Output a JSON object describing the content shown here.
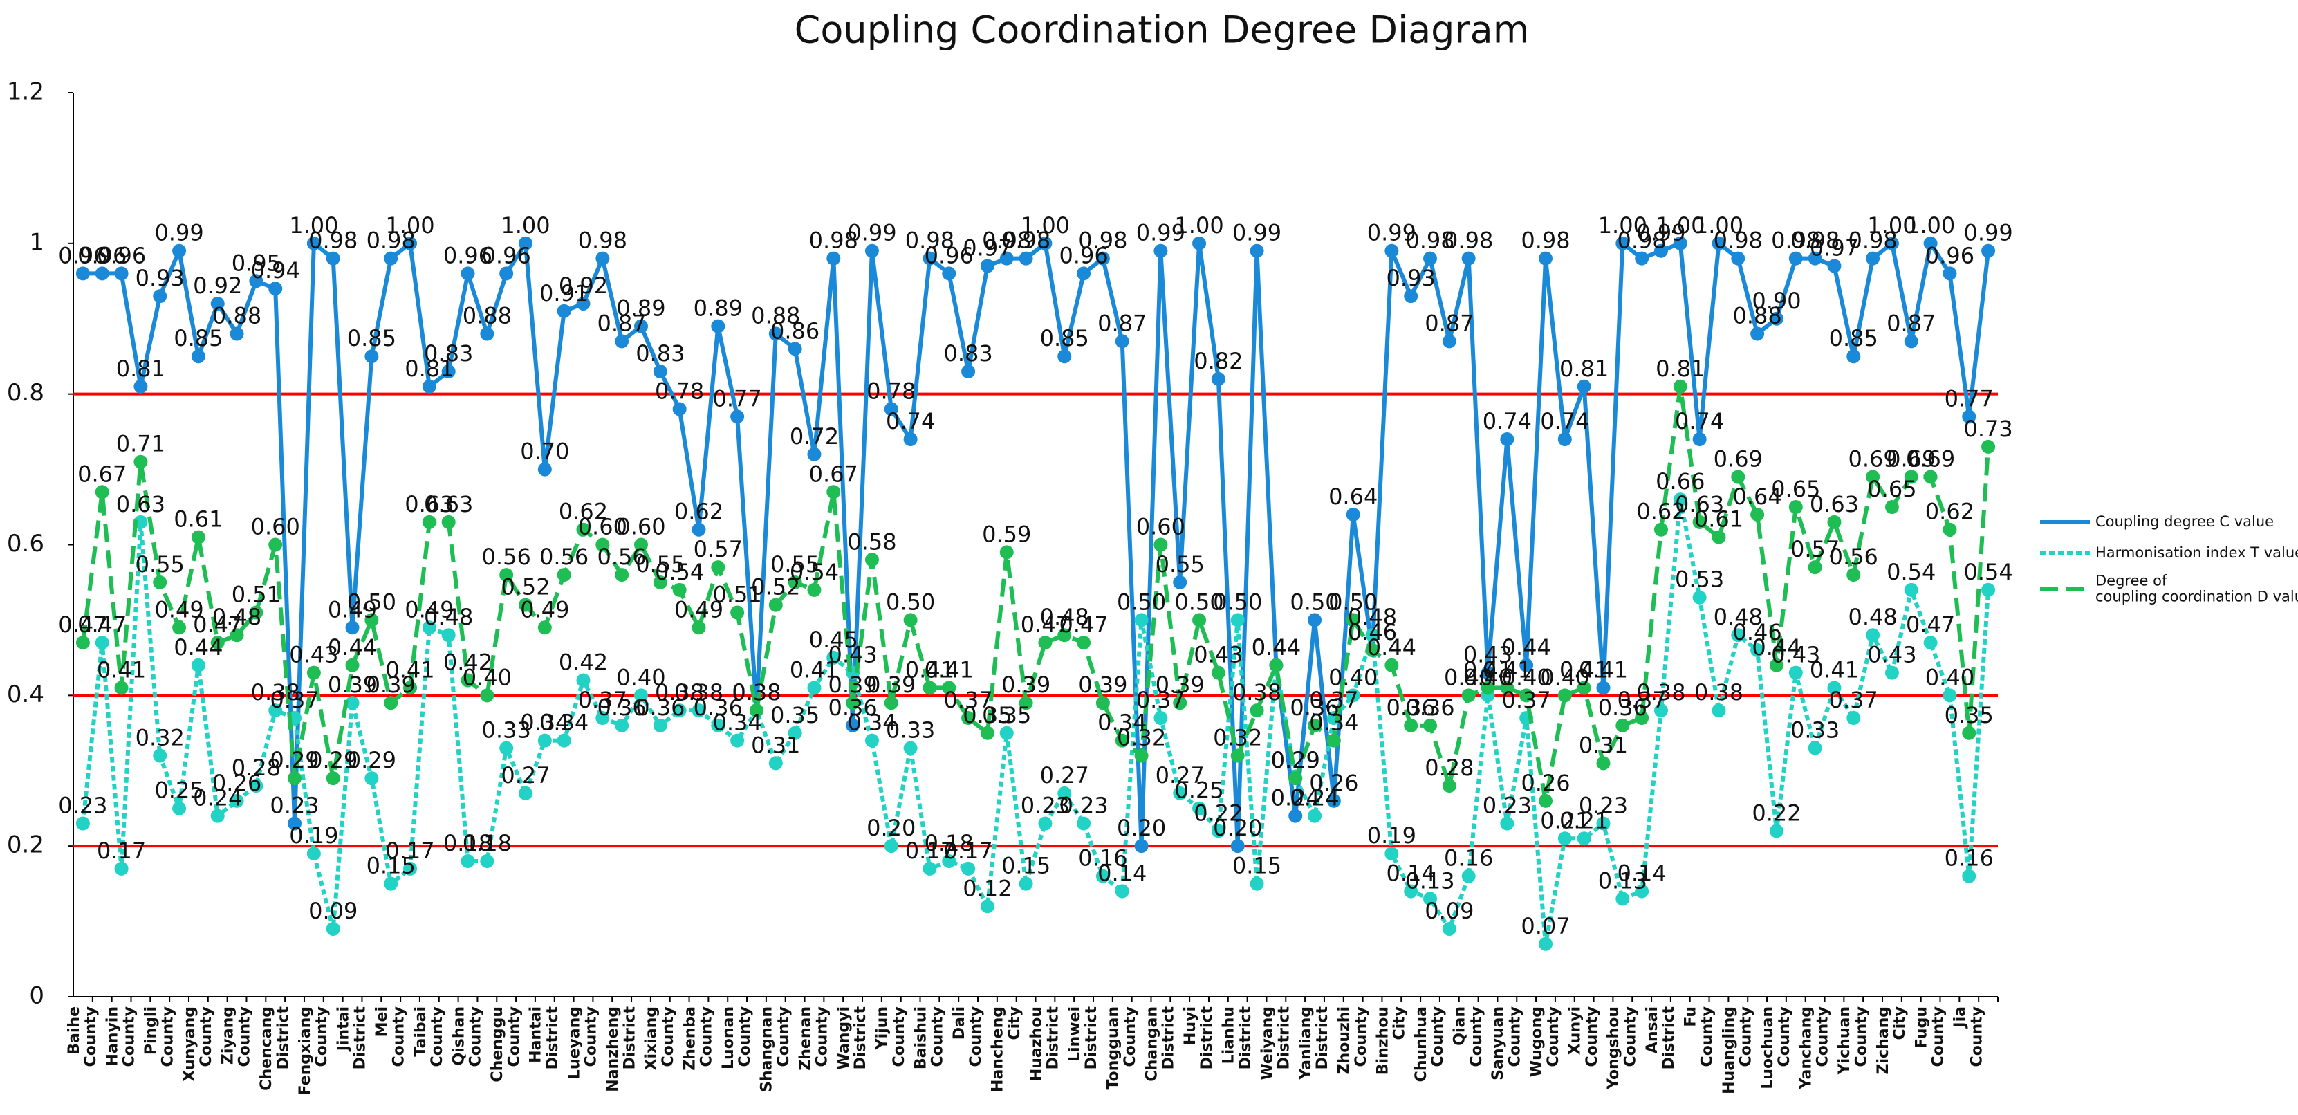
{
  "chart_data": {
    "type": "line",
    "title": "Coupling Coordination Degree Diagram",
    "categories": [
      "Baihe County",
      null,
      "Hanyin County",
      null,
      "Pingli County",
      null,
      "Xunyang County",
      null,
      "Ziyang County",
      null,
      "Chencang District",
      null,
      "Fengxiang County",
      null,
      "Jintai District",
      null,
      "Mei County",
      null,
      "Taibai County",
      null,
      "Qishan County",
      null,
      "Chenggu County",
      null,
      "Hantai District",
      null,
      "Lueyang County",
      null,
      "Nanzheng District",
      null,
      "Xixiang County",
      null,
      "Zhenba County",
      null,
      "Luonan County",
      null,
      "Shangnan County",
      null,
      "Zhenan County",
      null,
      "Wangyi District",
      null,
      "Yijun County",
      null,
      "Baishui County",
      null,
      "Dali County",
      null,
      "Hancheng City",
      null,
      "Huazhou District",
      null,
      "Linwei District",
      null,
      "Tongguan County",
      null,
      "Changan District",
      null,
      "Huyi District",
      null,
      "Lianhu District",
      null,
      "Weiyang District",
      null,
      "Yanliang District",
      null,
      "Zhouzhi County",
      null,
      "Binzhou City",
      null,
      "Chunhua County",
      null,
      "Qian County",
      null,
      "Sanyuan County",
      null,
      "Wugong County",
      null,
      "Xunyi County",
      null,
      "Yongshou County",
      null,
      "Ansai District",
      null,
      "Fu County",
      null,
      "Huangling County",
      null,
      "Luochuan County",
      null,
      "Yanchang County",
      null,
      "Yichuan County",
      null,
      "Zichang City",
      null,
      "Fugu County",
      null,
      "Jia County",
      null
    ],
    "series": [
      {
        "name": "Coupling degree C value",
        "color": "#1a8ad8",
        "style": "solid",
        "values": [
          0.96,
          0.96,
          0.96,
          0.81,
          0.93,
          0.99,
          0.85,
          0.92,
          0.88,
          0.95,
          0.94,
          0.23,
          1,
          0.98,
          0.49,
          0.85,
          0.98,
          1,
          0.81,
          0.83,
          0.96,
          0.88,
          0.96,
          1,
          0.7,
          0.91,
          0.92,
          0.98,
          0.87,
          0.89,
          0.83,
          0.78,
          0.62,
          0.89,
          0.77,
          0.38,
          0.88,
          0.86,
          0.72,
          0.98,
          0.36,
          0.99,
          0.78,
          0.74,
          0.98,
          0.96,
          0.83,
          0.97,
          0.98,
          0.98,
          1,
          0.85,
          0.96,
          0.98,
          0.87,
          0.2,
          0.99,
          0.55,
          1,
          0.82,
          0.2,
          0.99,
          0.44,
          0.24,
          0.5,
          0.26,
          0.64,
          0.46,
          0.99,
          0.93,
          0.98,
          0.87,
          0.98,
          0.43,
          0.74,
          0.44,
          0.98,
          0.74,
          0.81,
          0.41,
          1,
          0.98,
          0.99,
          1,
          0.74,
          1,
          0.98,
          0.88,
          0.9,
          0.98,
          0.98,
          0.97,
          0.85,
          0.98,
          1,
          0.87,
          1,
          0.96,
          0.77,
          0.99
        ],
        "value_labels": [
          "0.96",
          "0.96",
          "0.96",
          "0.81",
          "0.93",
          "0.99",
          "0.85",
          "0.92",
          "0.88",
          "0.95",
          "0.94",
          "0.23",
          "1.00",
          "0.98",
          "0.49",
          "0.85",
          "0.98",
          "1.00",
          "0.81",
          "0.83",
          "0.96",
          "0.88",
          "0.96",
          "1.00",
          "0.70",
          "0.91",
          "0.92",
          "0.98",
          "0.87",
          "0.89",
          "0.83",
          "0.78",
          "0.62",
          "0.89",
          "0.77",
          "0.38",
          "0.88",
          "0.86",
          "0.72",
          "0.98",
          "0.36",
          "0.99",
          "0.78",
          "0.74",
          "0.98",
          "0.96",
          "0.83",
          "0.97",
          "0.98",
          "0.98",
          "1.00",
          "0.85",
          "0.96",
          "0.98",
          "0.87",
          "0.20",
          "0.99",
          "0.55",
          "1.00",
          "0.82",
          "0.20",
          "0.99",
          "0.44",
          "0.24",
          "0.50",
          "0.26",
          "0.64",
          "0.46",
          "0.99",
          "0.93",
          "0.98",
          "0.87",
          "0.98",
          "0.43",
          "0.74",
          "0.44",
          "0.98",
          "0.74",
          "0.81",
          "0.41",
          "1.00",
          "0.98",
          "0.99",
          "1.00",
          "0.74",
          "1.00",
          "0.98",
          "0.88",
          "0.90",
          "0.98",
          "0.98",
          "0.97",
          "0.85",
          "0.98",
          "1.00",
          "0.87",
          "1.00",
          "0.96",
          "0.77",
          "0.99"
        ]
      },
      {
        "name": "Harmonisation index T value",
        "color": "#22d3c5",
        "style": "dotted",
        "values": [
          0.23,
          0.47,
          0.17,
          0.63,
          0.32,
          0.25,
          0.44,
          0.24,
          0.26,
          0.28,
          0.38,
          0.37,
          0.19,
          0.09,
          0.39,
          0.29,
          0.15,
          0.17,
          0.49,
          0.48,
          0.18,
          0.18,
          0.33,
          0.27,
          0.34,
          0.34,
          0.42,
          0.37,
          0.36,
          0.4,
          0.36,
          0.38,
          0.38,
          0.36,
          0.34,
          0.38,
          0.31,
          0.35,
          0.41,
          0.45,
          0.43,
          0.34,
          0.2,
          0.33,
          0.17,
          0.18,
          0.17,
          0.12,
          0.35,
          0.15,
          0.23,
          0.27,
          0.23,
          0.16,
          0.14,
          0.5,
          0.37,
          0.27,
          0.25,
          0.22,
          0.5,
          0.15,
          0.44,
          0.29,
          0.24,
          0.37,
          0.4,
          0.48,
          0.19,
          0.14,
          0.13,
          0.09,
          0.16,
          0.4,
          0.23,
          0.37,
          0.07,
          0.21,
          0.21,
          0.23,
          0.13,
          0.14,
          0.38,
          0.66,
          0.53,
          0.38,
          0.48,
          0.46,
          0.22,
          0.43,
          0.33,
          0.41,
          0.37,
          0.48,
          0.43,
          0.54,
          0.47,
          0.4,
          0.16,
          0.54
        ],
        "value_labels": [
          "0.23",
          "0.47",
          "0.17",
          "0.63",
          "0.32",
          "0.25",
          "0.44",
          "0.24",
          "0.26",
          "0.28",
          "0.38",
          "0.37",
          "0.19",
          "0.09",
          "0.39",
          "0.29",
          "0.15",
          "0.17",
          "0.49",
          "0.48",
          "0.18",
          "0.18",
          "0.33",
          "0.27",
          "0.34",
          "0.34",
          "0.42",
          "0.37",
          "0.36",
          "0.40",
          "0.36",
          "0.38",
          "0.38",
          "0.36",
          "0.34",
          "0.38",
          "0.31",
          "0.35",
          "0.41",
          "0.45",
          "0.43",
          "0.34",
          "0.20",
          "0.33",
          "0.17",
          "0.18",
          "0.17",
          "0.12",
          "0.35",
          "0.15",
          "0.23",
          "0.27",
          "0.23",
          "0.16",
          "0.14",
          "0.50",
          "0.37",
          "0.27",
          "0.25",
          "0.22",
          "0.50",
          "0.15",
          "0.44",
          "0.29",
          "0.24",
          "0.37",
          "0.40",
          "0.48",
          "0.19",
          "0.14",
          "0.13",
          "0.09",
          "0.16",
          "0.40",
          "0.23",
          "0.37",
          "0.07",
          "0.21",
          "0.21",
          "0.23",
          "0.13",
          "0.14",
          "0.38",
          "0.66",
          "0.53",
          "0.38",
          "0.48",
          "0.46",
          "0.22",
          "0.43",
          "0.33",
          "0.41",
          "0.37",
          "0.48",
          "0.43",
          "0.54",
          "0.47",
          "0.40",
          "0.16",
          "0.54"
        ]
      },
      {
        "name": "Degree of coupling coordination D value",
        "color": "#1fbe55",
        "style": "dashed",
        "values": [
          0.47,
          0.67,
          0.41,
          0.71,
          0.55,
          0.49,
          0.61,
          0.47,
          0.48,
          0.51,
          0.6,
          0.29,
          0.43,
          0.29,
          0.44,
          0.5,
          0.39,
          0.41,
          0.63,
          0.63,
          0.42,
          0.4,
          0.56,
          0.52,
          0.49,
          0.56,
          0.62,
          0.6,
          0.56,
          0.6,
          0.55,
          0.54,
          0.49,
          0.57,
          0.51,
          0.38,
          0.52,
          0.55,
          0.54,
          0.67,
          0.39,
          0.58,
          0.39,
          0.5,
          0.41,
          0.41,
          0.37,
          0.35,
          0.59,
          0.39,
          0.47,
          0.48,
          0.47,
          0.39,
          0.34,
          0.32,
          0.6,
          0.39,
          0.5,
          0.43,
          0.32,
          0.38,
          0.44,
          0.29,
          0.36,
          0.34,
          0.5,
          0.46,
          0.44,
          0.36,
          0.36,
          0.28,
          0.4,
          0.41,
          0.41,
          0.4,
          0.26,
          0.4,
          0.41,
          0.31,
          0.36,
          0.37,
          0.62,
          0.81,
          0.63,
          0.61,
          0.69,
          0.64,
          0.44,
          0.65,
          0.57,
          0.63,
          0.56,
          0.69,
          0.65,
          0.69,
          0.69,
          0.62,
          0.35,
          0.73
        ],
        "value_labels": [
          "0.47",
          "0.67",
          "0.41",
          "0.71",
          "0.55",
          "0.49",
          "0.61",
          "0.47",
          "0.48",
          "0.51",
          "0.60",
          "0.29",
          "0.43",
          "0.29",
          "0.44",
          "0.50",
          "0.39",
          "0.41",
          "0.63",
          "0.63",
          "0.42",
          "0.40",
          "0.56",
          "0.52",
          "0.49",
          "0.56",
          "0.62",
          "0.60",
          "0.56",
          "0.60",
          "0.55",
          "0.54",
          "0.49",
          "0.57",
          "0.51",
          "0.38",
          "0.52",
          "0.55",
          "0.54",
          "0.67",
          "0.39",
          "0.58",
          "0.39",
          "0.50",
          "0.41",
          "0.41",
          "0.37",
          "0.35",
          "0.59",
          "0.39",
          "0.47",
          "0.48",
          "0.47",
          "0.39",
          "0.34",
          "0.32",
          "0.60",
          "0.39",
          "0.50",
          "0.43",
          "0.32",
          "0.38",
          "0.44",
          "0.29",
          "0.36",
          "0.34",
          "0.50",
          "0.46",
          "0.44",
          "0.36",
          "0.36",
          "0.28",
          "0.40",
          "0.41",
          "0.41",
          "0.40",
          "0.26",
          "0.40",
          "0.41",
          "0.31",
          "0.36",
          "0.37",
          "0.62",
          "0.81",
          "0.63",
          "0.61",
          "0.69",
          "0.64",
          "0.44",
          "0.65",
          "0.57",
          "0.63",
          "0.56",
          "0.69",
          "0.65",
          "0.69",
          "0.69",
          "0.62",
          "0.35",
          "0.73"
        ]
      }
    ],
    "ylim": [
      0,
      1.2
    ],
    "yticks": [
      0,
      0.2,
      0.4,
      0.6,
      0.8,
      1,
      1.2
    ],
    "reference_lines": [
      0.2,
      0.4,
      0.8
    ],
    "reference_color": "#ff0000",
    "grid": false,
    "legend": "right"
  }
}
